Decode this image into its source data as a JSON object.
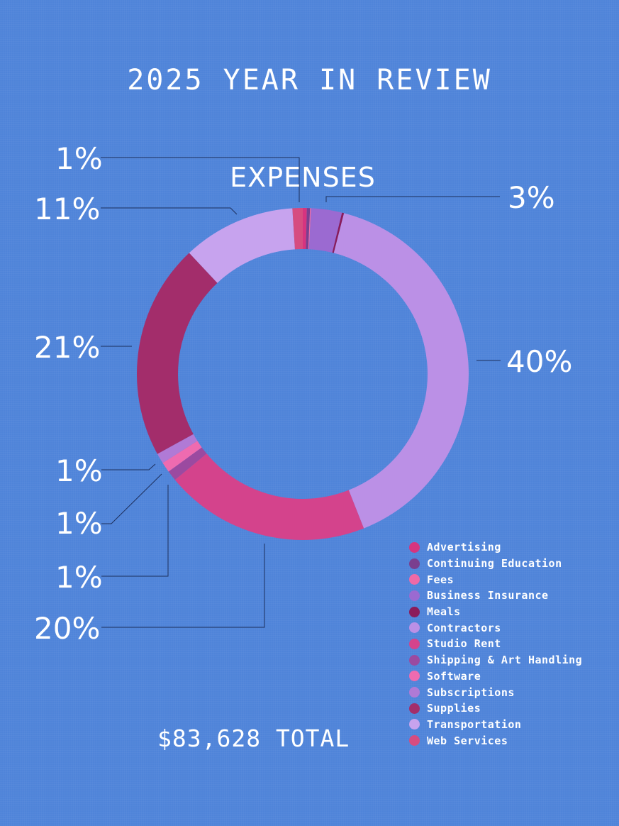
{
  "header": {
    "title": "2025 YEAR IN REVIEW",
    "subtitle": "EXPENSES",
    "total": "$83,628 TOTAL"
  },
  "chart_data": {
    "type": "pie",
    "donut": true,
    "title": "EXPENSES",
    "legend_position": "bottom-right",
    "slices": [
      {
        "label": "Advertising",
        "value": 0.4,
        "color": "#d6347f"
      },
      {
        "label": "Continuing Education",
        "value": 0.3,
        "color": "#7a3f8f"
      },
      {
        "label": "Fees",
        "value": 0.1,
        "color": "#ee6aa7"
      },
      {
        "label": "Business Insurance",
        "value": 3.0,
        "color": "#9b6ad1"
      },
      {
        "label": "Meals",
        "value": 0.2,
        "color": "#8b1b5a"
      },
      {
        "label": "Contractors",
        "value": 40,
        "color": "#bb90e6"
      },
      {
        "label": "Studio Rent",
        "value": 20,
        "color": "#d4438c"
      },
      {
        "label": "Shipping & Art Handling",
        "value": 1,
        "color": "#9b4aa0"
      },
      {
        "label": "Software",
        "value": 1,
        "color": "#ee6bb0"
      },
      {
        "label": "Subscriptions",
        "value": 1,
        "color": "#b07ad6"
      },
      {
        "label": "Supplies",
        "value": 21,
        "color": "#a32d6b"
      },
      {
        "label": "Transportation",
        "value": 11,
        "color": "#c7a3ee"
      },
      {
        "label": "Web Services",
        "value": 1,
        "color": "#d64c80"
      }
    ],
    "annotations": [
      {
        "text": "1%",
        "slice": "Web Services"
      },
      {
        "text": "3%",
        "slice": "Business Insurance"
      },
      {
        "text": "11%",
        "slice": "Transportation"
      },
      {
        "text": "40%",
        "slice": "Contractors"
      },
      {
        "text": "21%",
        "slice": "Supplies"
      },
      {
        "text": "1%",
        "slice": "Subscriptions"
      },
      {
        "text": "1%",
        "slice": "Software"
      },
      {
        "text": "1%",
        "slice": "Shipping & Art Handling"
      },
      {
        "text": "20%",
        "slice": "Studio Rent"
      }
    ]
  }
}
